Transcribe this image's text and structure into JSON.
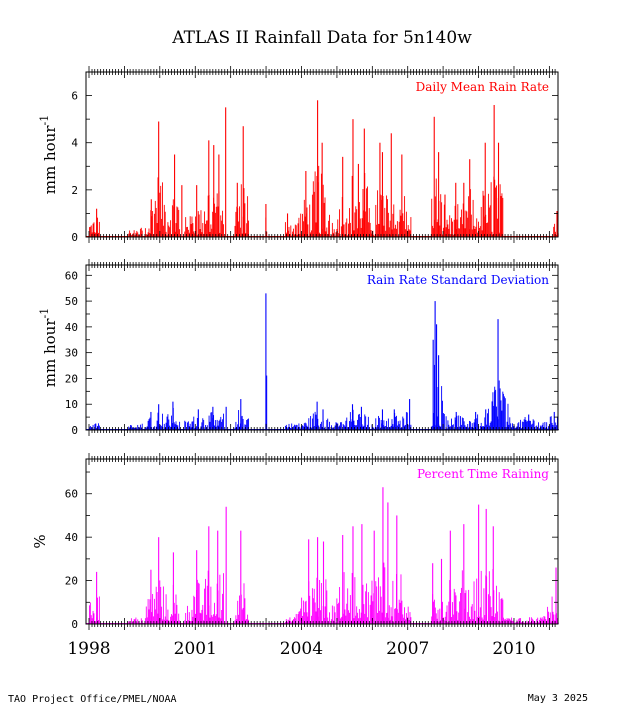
{
  "title": "ATLAS II Rainfall Data for 5n140w",
  "footer": {
    "left": "TAO Project Office/PMEL/NOAA",
    "right": "May  3 2025"
  },
  "x_axis": {
    "type": "date",
    "range": [
      "1997-12-01",
      "2011-03-31"
    ],
    "ticklabels": [
      "1998",
      "2001",
      "2004",
      "2007",
      "2010"
    ]
  },
  "chart_data": [
    {
      "type": "bar",
      "title": "Daily Mean Rain Rate",
      "ylabel": "mm hour",
      "ylabel_exponent": "-1",
      "color": "#ff0000",
      "ylim": [
        0,
        7
      ],
      "yticks": [
        0,
        2,
        4,
        6
      ],
      "grid": false,
      "legend_position": "top-right",
      "segments": [
        [
          "1998-01-01",
          "1998-04-15"
        ],
        [
          "1999-02-10",
          "1999-06-30"
        ],
        [
          "1999-08-01",
          "2000-07-20"
        ],
        [
          "2000-09-10",
          "2001-10-15"
        ],
        [
          "2002-02-10",
          "2002-07-05"
        ],
        [
          "2002-12-25",
          "2003-01-05"
        ],
        [
          "2003-07-15",
          "2004-10-15"
        ],
        [
          "2004-11-01",
          "2006-01-15"
        ],
        [
          "2006-02-01",
          "2007-02-05"
        ],
        [
          "2007-09-01",
          "2009-09-10"
        ],
        [
          "2011-02-10",
          "2011-03-31"
        ]
      ],
      "peaks": [
        {
          "x": "1998-03-20",
          "y": 1.2
        },
        {
          "x": "1999-10-05",
          "y": 1.6
        },
        {
          "x": "1999-12-20",
          "y": 4.9
        },
        {
          "x": "2000-06-01",
          "y": 3.5
        },
        {
          "x": "2000-08-15",
          "y": 2.2
        },
        {
          "x": "2001-01-15",
          "y": 2.2
        },
        {
          "x": "2001-05-20",
          "y": 4.1
        },
        {
          "x": "2001-07-10",
          "y": 3.9
        },
        {
          "x": "2001-09-01",
          "y": 3.5
        },
        {
          "x": "2001-11-10",
          "y": 5.5
        },
        {
          "x": "2002-03-10",
          "y": 2.3
        },
        {
          "x": "2002-05-10",
          "y": 4.7
        },
        {
          "x": "2002-12-30",
          "y": 1.4
        },
        {
          "x": "2003-08-10",
          "y": 1.0
        },
        {
          "x": "2004-02-15",
          "y": 2.8
        },
        {
          "x": "2004-06-15",
          "y": 5.8
        },
        {
          "x": "2004-08-01",
          "y": 4.0
        },
        {
          "x": "2005-03-01",
          "y": 3.4
        },
        {
          "x": "2005-06-15",
          "y": 5.0
        },
        {
          "x": "2005-08-10",
          "y": 3.1
        },
        {
          "x": "2005-10-10",
          "y": 4.6
        },
        {
          "x": "2006-03-20",
          "y": 4.0
        },
        {
          "x": "2006-04-15",
          "y": 3.6
        },
        {
          "x": "2006-07-15",
          "y": 4.4
        },
        {
          "x": "2006-11-01",
          "y": 3.5
        },
        {
          "x": "2007-10-01",
          "y": 5.1
        },
        {
          "x": "2007-11-15",
          "y": 3.6
        },
        {
          "x": "2008-01-20",
          "y": 1.8
        },
        {
          "x": "2008-05-10",
          "y": 2.3
        },
        {
          "x": "2008-08-01",
          "y": 2.3
        },
        {
          "x": "2008-10-01",
          "y": 3.3
        },
        {
          "x": "2009-03-10",
          "y": 4.0
        },
        {
          "x": "2009-06-10",
          "y": 5.6
        },
        {
          "x": "2009-07-25",
          "y": 4.0
        },
        {
          "x": "2011-03-20",
          "y": 1.1
        }
      ]
    },
    {
      "type": "bar",
      "title": "Rain Rate Standard Deviation",
      "ylabel": "mm hour",
      "ylabel_exponent": "-1",
      "color": "#0000ff",
      "ylim": [
        0,
        64
      ],
      "yticks": [
        0,
        10,
        20,
        30,
        40,
        50,
        60
      ],
      "grid": false,
      "legend_position": "top-right",
      "segments": [
        [
          "1998-01-01",
          "1998-04-15"
        ],
        [
          "1999-02-10",
          "1999-06-30"
        ],
        [
          "1999-08-01",
          "2000-07-20"
        ],
        [
          "2000-09-10",
          "2001-10-15"
        ],
        [
          "2002-02-10",
          "2002-07-05"
        ],
        [
          "2002-12-25",
          "2003-01-05"
        ],
        [
          "2003-07-15",
          "2004-10-15"
        ],
        [
          "2004-11-01",
          "2006-01-15"
        ],
        [
          "2006-02-01",
          "2007-02-05"
        ],
        [
          "2007-09-01",
          "2009-09-10"
        ],
        [
          "2009-09-10",
          "2011-03-31"
        ]
      ],
      "peaks": [
        {
          "x": "1998-03-10",
          "y": 2.5
        },
        {
          "x": "1999-10-01",
          "y": 7
        },
        {
          "x": "1999-12-20",
          "y": 10
        },
        {
          "x": "2000-05-15",
          "y": 11
        },
        {
          "x": "2001-02-01",
          "y": 8
        },
        {
          "x": "2001-07-01",
          "y": 9
        },
        {
          "x": "2001-11-15",
          "y": 9
        },
        {
          "x": "2002-04-15",
          "y": 12
        },
        {
          "x": "2002-12-30",
          "y": 53
        },
        {
          "x": "2004-06-10",
          "y": 11
        },
        {
          "x": "2004-08-10",
          "y": 8
        },
        {
          "x": "2005-06-10",
          "y": 10
        },
        {
          "x": "2005-09-10",
          "y": 9
        },
        {
          "x": "2006-04-15",
          "y": 8
        },
        {
          "x": "2006-08-15",
          "y": 8
        },
        {
          "x": "2007-01-20",
          "y": 12
        },
        {
          "x": "2007-09-20",
          "y": 35
        },
        {
          "x": "2007-10-10",
          "y": 50
        },
        {
          "x": "2007-10-25",
          "y": 41
        },
        {
          "x": "2007-11-15",
          "y": 29
        },
        {
          "x": "2008-05-15",
          "y": 7
        },
        {
          "x": "2008-12-01",
          "y": 7
        },
        {
          "x": "2009-03-15",
          "y": 8
        },
        {
          "x": "2009-06-15",
          "y": 15
        },
        {
          "x": "2009-07-20",
          "y": 43
        },
        {
          "x": "2010-06-01",
          "y": 6
        },
        {
          "x": "2011-02-20",
          "y": 7
        }
      ]
    },
    {
      "type": "bar",
      "title": "Percent Time Raining",
      "ylabel": "%",
      "color": "#ff00ff",
      "ylim": [
        0,
        76
      ],
      "yticks": [
        0,
        20,
        40,
        60
      ],
      "grid": false,
      "legend_position": "top-right",
      "segments": [
        [
          "1998-01-01",
          "1998-04-15"
        ],
        [
          "1999-02-10",
          "1999-06-30"
        ],
        [
          "1999-08-01",
          "2000-07-20"
        ],
        [
          "2000-09-10",
          "2001-10-15"
        ],
        [
          "2002-02-10",
          "2002-07-05"
        ],
        [
          "2003-07-15",
          "2004-10-15"
        ],
        [
          "2004-11-01",
          "2006-01-15"
        ],
        [
          "2006-02-01",
          "2007-02-05"
        ],
        [
          "2007-09-01",
          "2009-09-10"
        ],
        [
          "2009-09-10",
          "2011-03-31"
        ]
      ],
      "peaks": [
        {
          "x": "1998-03-20",
          "y": 24
        },
        {
          "x": "1999-10-01",
          "y": 25
        },
        {
          "x": "1999-12-20",
          "y": 40
        },
        {
          "x": "2000-05-20",
          "y": 33
        },
        {
          "x": "2001-01-15",
          "y": 34
        },
        {
          "x": "2001-05-20",
          "y": 45
        },
        {
          "x": "2001-08-20",
          "y": 43
        },
        {
          "x": "2001-11-15",
          "y": 54
        },
        {
          "x": "2002-04-15",
          "y": 43
        },
        {
          "x": "2004-03-15",
          "y": 39
        },
        {
          "x": "2004-06-15",
          "y": 40
        },
        {
          "x": "2004-08-15",
          "y": 38
        },
        {
          "x": "2005-03-01",
          "y": 41
        },
        {
          "x": "2005-06-15",
          "y": 45
        },
        {
          "x": "2005-09-15",
          "y": 46
        },
        {
          "x": "2006-01-20",
          "y": 43
        },
        {
          "x": "2006-04-20",
          "y": 63
        },
        {
          "x": "2006-06-10",
          "y": 56
        },
        {
          "x": "2006-09-10",
          "y": 50
        },
        {
          "x": "2007-09-15",
          "y": 28
        },
        {
          "x": "2007-12-15",
          "y": 30
        },
        {
          "x": "2008-03-15",
          "y": 43
        },
        {
          "x": "2008-08-01",
          "y": 46
        },
        {
          "x": "2009-01-01",
          "y": 55
        },
        {
          "x": "2009-03-20",
          "y": 53
        },
        {
          "x": "2009-06-01",
          "y": 45
        },
        {
          "x": "2011-03-10",
          "y": 26
        }
      ]
    }
  ]
}
